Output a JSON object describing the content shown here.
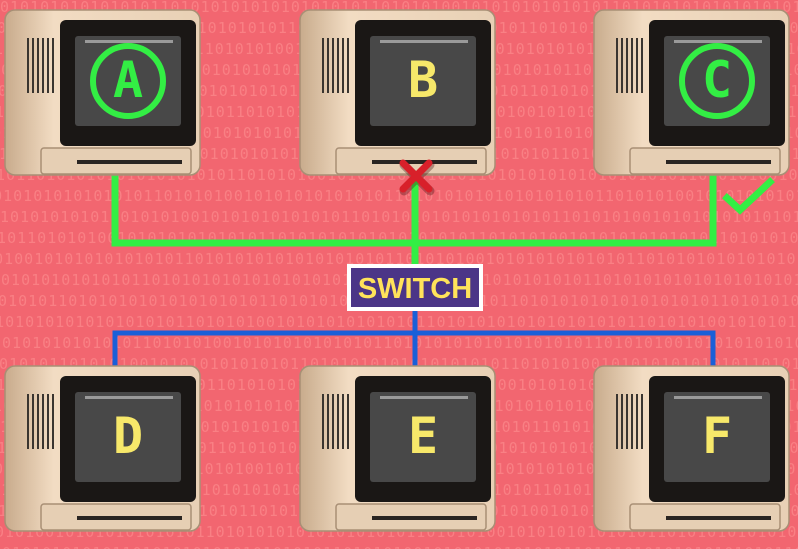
{
  "background_bits": "010101010101010110101010101010101010110101010",
  "computers": [
    {
      "id": "A",
      "label": "A",
      "circled": true
    },
    {
      "id": "B",
      "label": "B",
      "circled": false
    },
    {
      "id": "C",
      "label": "C",
      "circled": true
    },
    {
      "id": "D",
      "label": "D",
      "circled": false
    },
    {
      "id": "E",
      "label": "E",
      "circled": false
    },
    {
      "id": "F",
      "label": "F",
      "circled": false
    }
  ],
  "switch": {
    "label": "SWITCH"
  },
  "markers": {
    "blocked": "cross-icon",
    "delivered": "check-icon"
  },
  "colors": {
    "background": "#f26670",
    "active_link": "#33ee44",
    "idle_link": "#1a5fd8",
    "switch_fill": "#4b3587",
    "switch_text": "#ffe35a",
    "screen_letter": "#f7e86a",
    "cross": "#d8202a"
  }
}
